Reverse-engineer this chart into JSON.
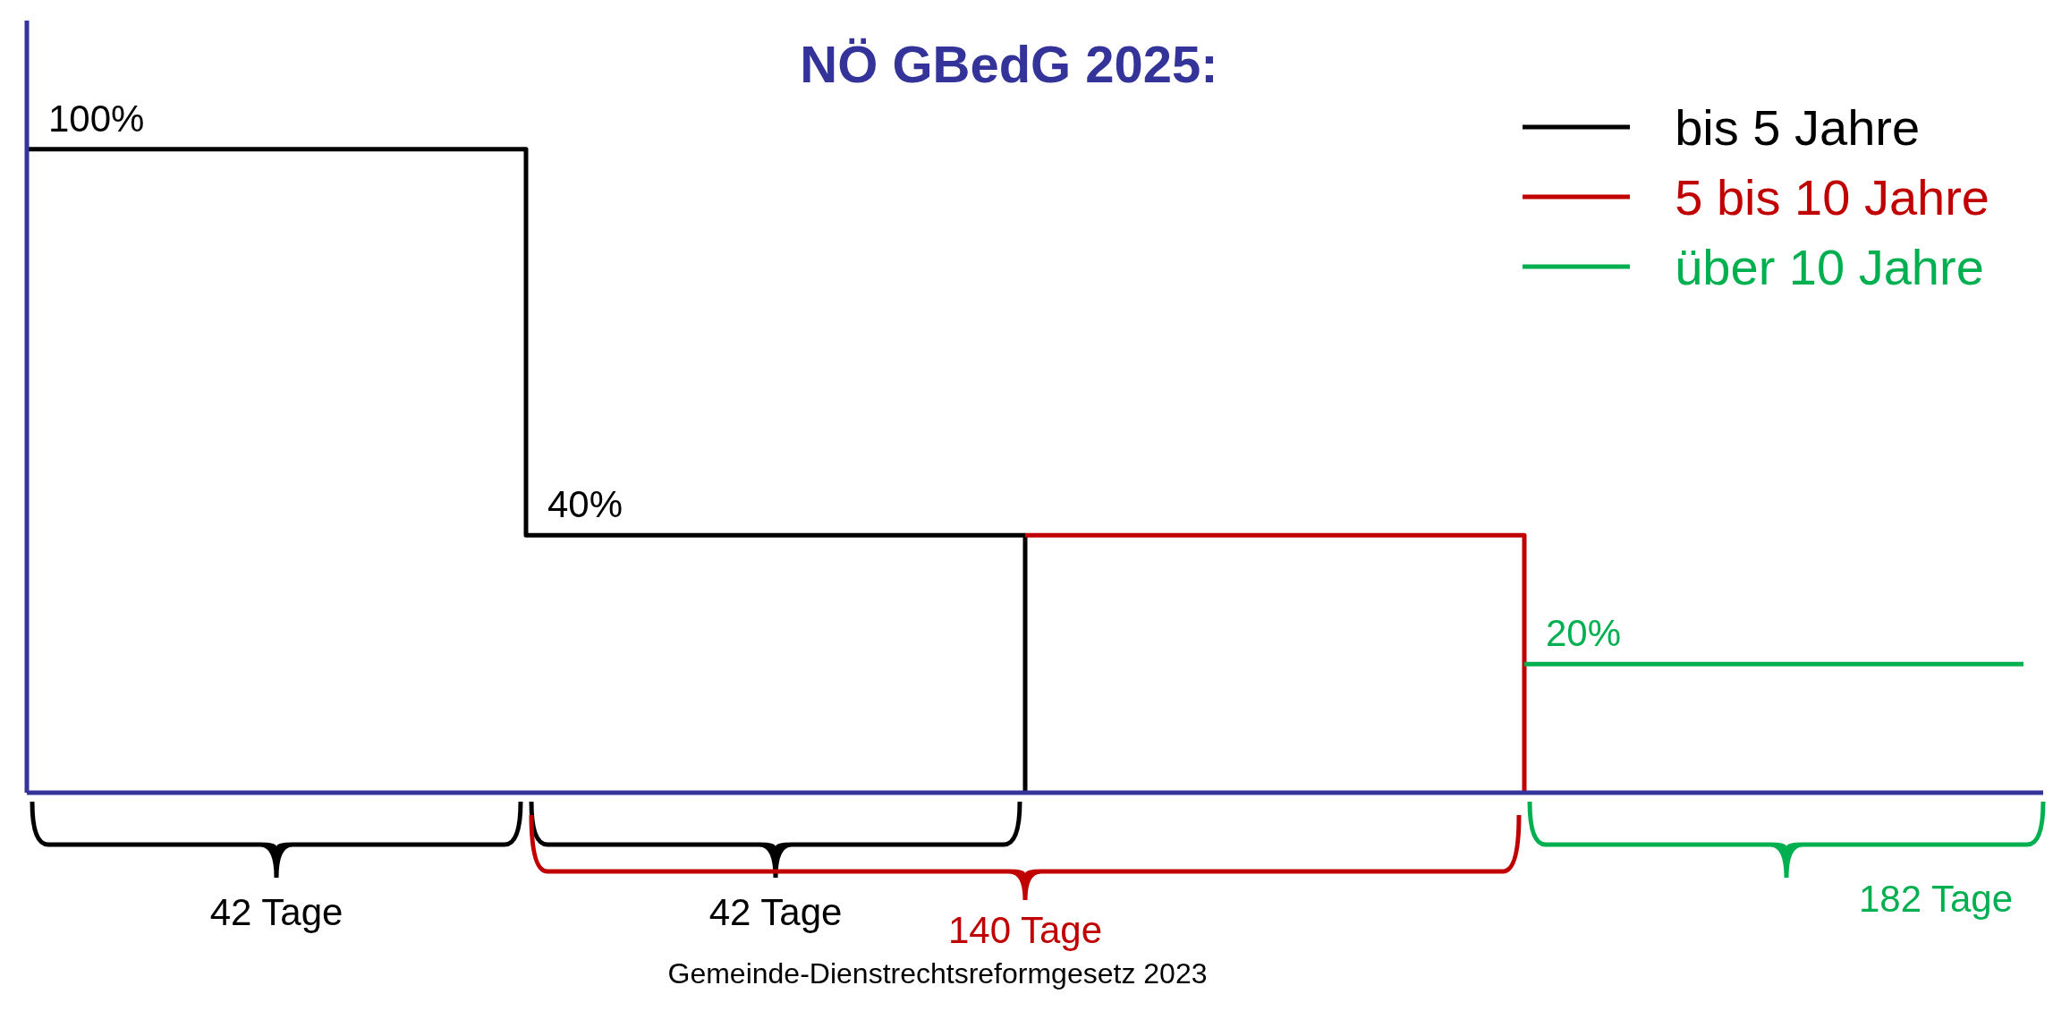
{
  "chart_data": {
    "type": "step",
    "title": "NÖ GBedG 2025:",
    "categories": [
      null,
      null,
      null,
      null,
      null
    ],
    "series": [
      {
        "name": "bis 5 Jahre",
        "color": "#000000",
        "values": [
          100,
          40,
          0,
          null,
          null
        ],
        "value_labels": [
          "100%",
          "40%",
          null,
          null,
          null
        ]
      },
      {
        "name": "5 bis 10 Jahre",
        "color": "#c00000",
        "values": [
          null,
          null,
          40,
          0,
          null
        ],
        "value_labels": [
          null,
          null,
          null,
          null,
          null
        ]
      },
      {
        "name": "über 10 Jahre",
        "color": "#00b050",
        "values": [
          null,
          null,
          null,
          20,
          20
        ],
        "value_labels": [
          null,
          null,
          null,
          "20%",
          null
        ]
      }
    ],
    "ylim": [
      0,
      120
    ],
    "tick_labels": false,
    "grid": false,
    "legend": "top right",
    "marker": "none",
    "annotations": [
      "42 Tage",
      "42 Tage",
      "140 Tage",
      "182 Tage",
      "Gemeinde-Dienstrechtsreformgesetz 2023"
    ]
  }
}
